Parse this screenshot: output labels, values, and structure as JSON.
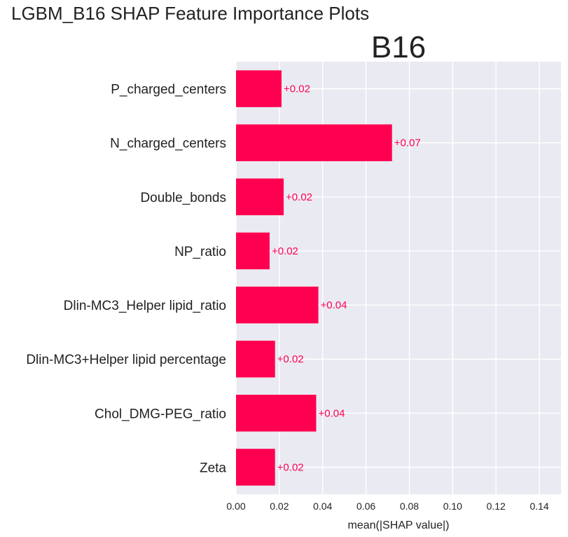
{
  "figure": {
    "suptitle": "LGBM_B16 SHAP Feature Importance Plots"
  },
  "chart_data": {
    "type": "bar",
    "orientation": "horizontal",
    "title": "B16",
    "xlabel": "mean(|SHAP value|)",
    "ylabel": "",
    "xlim": [
      0,
      0.15
    ],
    "xticks": [
      "0.00",
      "0.02",
      "0.04",
      "0.06",
      "0.08",
      "0.10",
      "0.12",
      "0.14"
    ],
    "xtick_values": [
      0,
      0.02,
      0.04,
      0.06,
      0.08,
      0.1,
      0.12,
      0.14
    ],
    "grid": true,
    "bar_color": "#ff0051",
    "label_color": "#ff0051",
    "background_color": "#eaeaf2",
    "categories": [
      "P_charged_centers",
      "N_charged_centers",
      "Double_bonds",
      "NP_ratio",
      "Dlin-MC3_Helper lipid_ratio",
      "Dlin-MC3+Helper lipid percentage",
      "Chol_DMG-PEG_ratio",
      "Zeta"
    ],
    "values": [
      0.021,
      0.072,
      0.022,
      0.0155,
      0.038,
      0.018,
      0.037,
      0.018
    ],
    "data_labels": [
      "+0.02",
      "+0.07",
      "+0.02",
      "+0.02",
      "+0.04",
      "+0.02",
      "+0.04",
      "+0.02"
    ]
  }
}
